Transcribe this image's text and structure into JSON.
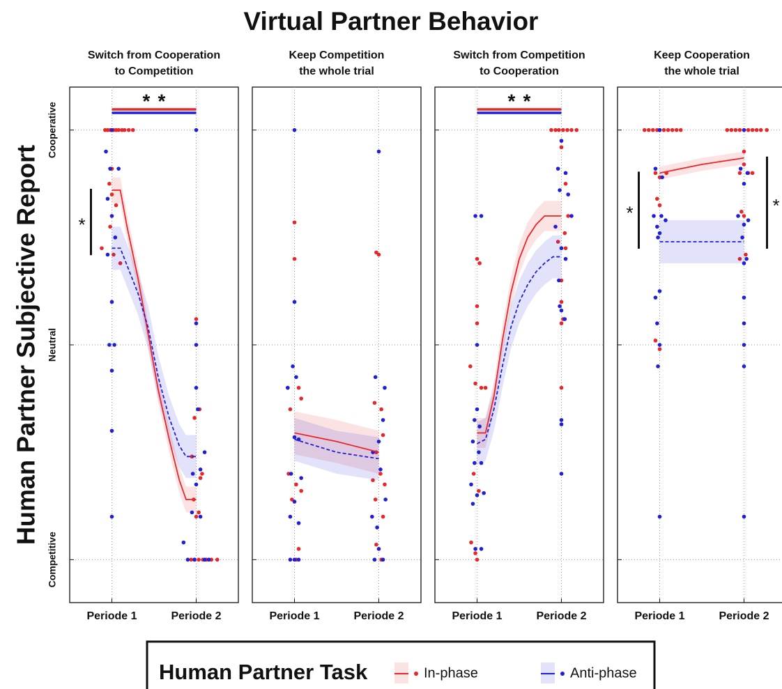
{
  "title": "Virtual Partner Behavior",
  "y_label": "Human Partner Subjective Report",
  "legend_title": "Human Partner Task",
  "chart_data": [
    {
      "type": "line",
      "title_lines": [
        "Switch from Cooperation",
        "to Competition"
      ],
      "xlim": [
        0.5,
        2.5
      ],
      "ylim": [
        -1.2,
        1.2
      ],
      "xticks": [
        {
          "value": 1,
          "label": "Periode 1"
        },
        {
          "value": 2,
          "label": "Periode 2"
        }
      ],
      "yticks": [
        {
          "value": -1,
          "label": "Competitive"
        },
        {
          "value": 0,
          "label": "Neutral"
        },
        {
          "value": 1,
          "label": "Cooperative"
        }
      ],
      "grid": true,
      "series": [
        {
          "name": "In-phase",
          "color": "#e8262a",
          "style": "solid",
          "x": [
            1,
            1.1,
            1.18,
            1.31,
            1.43,
            1.55,
            1.68,
            1.8,
            1.88,
            2
          ],
          "values": [
            0.72,
            0.72,
            0.55,
            0.31,
            0.05,
            -0.21,
            -0.44,
            -0.63,
            -0.72,
            -0.72
          ],
          "err": [
            0.06,
            0.06,
            0.06,
            0.06,
            0.06,
            0.06,
            0.06,
            0.06,
            0.06,
            0.06
          ],
          "dots_x": [
            0.92,
            0.95,
            0.98,
            1.02,
            1.05,
            1.08,
            1.12,
            1.15,
            1.2,
            1.25,
            1,
            0.97,
            1,
            1.05,
            0.98,
            0.88,
            1.02,
            1.1,
            2,
            2.04,
            1.98,
            1.95,
            2.05,
            2.07,
            1.97,
            2.03,
            2,
            1.94,
            1.98,
            2.03,
            2.08,
            2.12,
            2.18,
            2.25
          ],
          "dots_y": [
            1,
            1,
            1,
            1,
            1,
            1,
            1,
            1,
            1,
            1,
            0.82,
            0.75,
            0.7,
            0.65,
            0.55,
            0.45,
            0.42,
            0.38,
            0.12,
            -0.3,
            -0.34,
            -0.52,
            -0.62,
            -0.6,
            -0.72,
            -0.78,
            -0.8,
            -1,
            -1,
            -1,
            -1,
            -1,
            -1,
            -1
          ]
        },
        {
          "name": "Anti-phase",
          "color": "#1f1fd6",
          "style": "dashed",
          "x": [
            1,
            1.1,
            1.18,
            1.31,
            1.43,
            1.55,
            1.68,
            1.8,
            1.88,
            2
          ],
          "values": [
            0.45,
            0.45,
            0.37,
            0.24,
            0.08,
            -0.15,
            -0.34,
            -0.47,
            -0.52,
            -0.52
          ],
          "err": [
            0.1,
            0.1,
            0.1,
            0.1,
            0.1,
            0.1,
            0.1,
            0.1,
            0.1,
            0.1
          ],
          "dots_x": [
            1,
            0.93,
            0.98,
            1.08,
            0.95,
            1,
            1.04,
            0.95,
            1,
            0.97,
            1.03,
            1,
            1,
            1,
            2,
            2,
            2,
            2,
            2.02,
            2.1,
            2.05,
            1.96,
            2,
            1.95,
            2.05,
            1.85,
            1.9,
            1.98,
            2.1,
            2.15
          ],
          "dots_y": [
            1,
            0.9,
            0.82,
            0.82,
            0.68,
            0.6,
            0.5,
            0.42,
            0.2,
            0,
            0,
            -0.12,
            -0.4,
            -0.8,
            1,
            0.1,
            0,
            -0.2,
            -0.3,
            -0.5,
            -0.58,
            -0.6,
            -0.65,
            -0.78,
            -0.8,
            -0.92,
            -1,
            -1,
            -1,
            -1
          ]
        }
      ],
      "annotations": [
        {
          "text": "*",
          "kind": "top",
          "color": "#e8262a"
        },
        {
          "text": "*",
          "kind": "top",
          "color": "#1f1fd6"
        },
        {
          "text": "*",
          "kind": "left",
          "color": "#111111"
        }
      ]
    },
    {
      "type": "line",
      "title_lines": [
        "Keep Competition",
        "the whole trial"
      ],
      "xlim": [
        0.5,
        2.5
      ],
      "ylim": [
        -1.2,
        1.2
      ],
      "xticks": [
        {
          "value": 1,
          "label": "Periode 1"
        },
        {
          "value": 2,
          "label": "Periode 2"
        }
      ],
      "yticks": [
        -1,
        0,
        1
      ],
      "grid": true,
      "series": [
        {
          "name": "In-phase",
          "color": "#e8262a",
          "style": "solid",
          "x": [
            1,
            1.5,
            2
          ],
          "values": [
            -0.41,
            -0.45,
            -0.5
          ],
          "err": [
            0.1,
            0.1,
            0.1
          ],
          "dots_x": [
            1,
            1,
            0.92,
            1.05,
            0.95,
            1.08,
            0.93,
            1.02,
            1.08,
            0.97,
            1.05,
            1.02,
            2,
            1.97,
            1.95,
            2.03,
            2.05,
            1.97,
            2.02,
            1.93,
            2.07,
            1.96,
            2.05,
            1.97,
            2.03
          ],
          "dots_y": [
            0.57,
            0.4,
            -0.2,
            -0.2,
            -0.3,
            -0.25,
            -0.6,
            -0.65,
            -0.68,
            -0.72,
            -0.95,
            -1,
            0.42,
            0.43,
            -0.27,
            -0.3,
            -0.42,
            -0.5,
            -0.6,
            -0.63,
            -0.65,
            -0.72,
            -0.8,
            -0.93,
            -1
          ]
        },
        {
          "name": "Anti-phase",
          "color": "#1f1fd6",
          "style": "dashed",
          "x": [
            1,
            1.5,
            2
          ],
          "values": [
            -0.44,
            -0.5,
            -0.53
          ],
          "err": [
            0.1,
            0.1,
            0.1
          ],
          "dots_x": [
            1,
            1,
            0.98,
            1.02,
            0.92,
            1,
            1.05,
            0.96,
            1.08,
            1,
            0.95,
            1.05,
            0.95,
            1,
            1.05,
            2,
            1.96,
            2.07,
            2.05,
            2,
            1.93,
            2.02,
            2.08,
            1.92,
            1.98,
            2,
            1.95,
            2.05
          ],
          "dots_y": [
            1,
            0.2,
            -0.1,
            -0.15,
            -0.2,
            -0.43,
            -0.44,
            -0.6,
            -0.62,
            -0.73,
            -0.8,
            -0.83,
            -1,
            -1,
            -1,
            0.9,
            -0.15,
            -0.2,
            -0.35,
            -0.45,
            -0.5,
            -0.58,
            -0.72,
            -0.8,
            -0.85,
            -0.95,
            -1,
            -1
          ]
        }
      ],
      "annotations": []
    },
    {
      "type": "line",
      "title_lines": [
        "Switch from Competition",
        "to Cooperation"
      ],
      "xlim": [
        0.5,
        2.5
      ],
      "ylim": [
        -1.2,
        1.2
      ],
      "xticks": [
        {
          "value": 1,
          "label": "Periode 1"
        },
        {
          "value": 2,
          "label": "Periode 2"
        }
      ],
      "yticks": [
        -1,
        0,
        1
      ],
      "grid": true,
      "series": [
        {
          "name": "In-phase",
          "color": "#e8262a",
          "style": "solid",
          "x": [
            1,
            1.1,
            1.2,
            1.3,
            1.4,
            1.5,
            1.6,
            1.7,
            1.8,
            1.9,
            2
          ],
          "values": [
            -0.41,
            -0.41,
            -0.24,
            0.02,
            0.24,
            0.4,
            0.5,
            0.56,
            0.6,
            0.6,
            0.6
          ],
          "err": [
            0.07,
            0.07,
            0.07,
            0.07,
            0.07,
            0.07,
            0.07,
            0.07,
            0.07,
            0.07,
            0.07
          ],
          "dots_x": [
            1,
            1.03,
            1,
            1,
            0.92,
            0.98,
            1.05,
            1.1,
            0.96,
            1.02,
            0.93,
            0.98,
            1,
            1.88,
            1.93,
            1.97,
            2.02,
            2.07,
            2.12,
            2.18,
            2,
            2.05,
            2.08,
            2.04,
            1.96,
            2.05,
            2,
            2,
            2,
            2.02,
            2
          ],
          "dots_y": [
            0.4,
            0.38,
            0.18,
            0.1,
            -0.1,
            -0.18,
            -0.2,
            -0.2,
            -0.6,
            -0.68,
            -0.92,
            -0.97,
            -1,
            1,
            1,
            1,
            1,
            1,
            1,
            1,
            0.92,
            0.75,
            0.6,
            0.52,
            0.48,
            0.45,
            0.3,
            0.2,
            0.1,
            0.12,
            -0.2
          ]
        },
        {
          "name": "Anti-phase",
          "color": "#1f1fd6",
          "style": "dashed",
          "x": [
            1,
            1.1,
            1.2,
            1.3,
            1.4,
            1.5,
            1.6,
            1.7,
            1.8,
            1.9,
            2
          ],
          "values": [
            -0.46,
            -0.44,
            -0.3,
            -0.1,
            0.08,
            0.2,
            0.28,
            0.34,
            0.38,
            0.41,
            0.41
          ],
          "err": [
            0.1,
            0.1,
            0.1,
            0.1,
            0.1,
            0.1,
            0.1,
            0.1,
            0.1,
            0.1,
            0.1
          ],
          "dots_x": [
            0.98,
            1.05,
            1,
            0.97,
            1.03,
            1,
            0.95,
            1.02,
            0.97,
            1.05,
            0.93,
            1,
            1.08,
            0.95,
            0.98,
            1.05,
            2,
            1.96,
            2.05,
            1.98,
            2.08,
            2.12,
            1.93,
            2,
            2.05,
            1.97,
            2,
            1.98,
            2.04,
            2,
            2,
            2
          ],
          "dots_y": [
            0.6,
            0.6,
            -0.3,
            -0.35,
            -0.38,
            0,
            -0.45,
            -0.5,
            -0.55,
            -0.55,
            -0.65,
            -0.7,
            -0.69,
            -0.74,
            -0.95,
            -0.95,
            0.95,
            0.82,
            0.8,
            0.72,
            0.7,
            0.6,
            0.55,
            0.45,
            0.4,
            0.3,
            0.16,
            0.18,
            0.12,
            -0.35,
            -0.37,
            -0.6
          ]
        }
      ],
      "annotations": [
        {
          "text": "*",
          "kind": "top",
          "color": "#e8262a"
        },
        {
          "text": "*",
          "kind": "top",
          "color": "#1f1fd6"
        }
      ]
    },
    {
      "type": "line",
      "title_lines": [
        "Keep Cooperation",
        "the whole trial"
      ],
      "xlim": [
        0.5,
        2.5
      ],
      "ylim": [
        -1.2,
        1.2
      ],
      "xticks": [
        {
          "value": 1,
          "label": "Periode 1"
        },
        {
          "value": 2,
          "label": "Periode 2"
        }
      ],
      "yticks": [
        -1,
        0,
        1
      ],
      "grid": true,
      "series": [
        {
          "name": "In-phase",
          "color": "#e8262a",
          "style": "solid",
          "x": [
            1,
            1.5,
            2
          ],
          "values": [
            0.8,
            0.84,
            0.87
          ],
          "err": [
            0.03,
            0.03,
            0.03
          ],
          "dots_x": [
            0.82,
            0.87,
            0.92,
            0.97,
            1,
            1.05,
            1.1,
            1.15,
            1.2,
            1.25,
            0.95,
            1,
            1.08,
            0.97,
            1,
            0.95,
            1,
            1.8,
            1.85,
            1.9,
            1.95,
            2,
            2.05,
            2.1,
            2.15,
            2.2,
            2.27,
            2,
            2,
            1.95,
            2.05,
            2.1,
            1.97,
            2,
            2.02,
            1.95
          ],
          "dots_y": [
            1,
            1,
            1,
            1,
            1,
            1,
            1,
            1,
            1,
            1,
            0.8,
            0.78,
            0.8,
            0.68,
            0.65,
            0.02,
            -0.02,
            1,
            1,
            1,
            1,
            1,
            1,
            1,
            1,
            1,
            1,
            0.9,
            0.84,
            0.8,
            0.8,
            0.8,
            0.62,
            0.6,
            0.42,
            0.4
          ]
        },
        {
          "name": "Anti-phase",
          "color": "#1f1fd6",
          "style": "dashed",
          "x": [
            1,
            1.5,
            2
          ],
          "values": [
            0.48,
            0.48,
            0.48
          ],
          "err": [
            0.1,
            0.1,
            0.1
          ],
          "dots_x": [
            1,
            0.95,
            1.03,
            0.93,
            1.02,
            1.07,
            0.97,
            1,
            0.98,
            1,
            0.95,
            0.97,
            1,
            0.98,
            1,
            2,
            1.96,
            2.04,
            2,
            1.93,
            2.05,
            2,
            1.98,
            2.03,
            2,
            2,
            2,
            2,
            2,
            2
          ],
          "dots_y": [
            1,
            0.82,
            0.78,
            0.6,
            0.6,
            0.58,
            0.55,
            0.52,
            0.5,
            0.25,
            0.22,
            0.1,
            0,
            -0.1,
            -0.8,
            1,
            0.82,
            0.8,
            0.75,
            0.6,
            0.58,
            0.56,
            0.5,
            0.4,
            0.38,
            0.22,
            0.1,
            0,
            -0.1,
            -0.8
          ]
        }
      ],
      "annotations": [
        {
          "text": "*",
          "kind": "left",
          "color": "#111111"
        },
        {
          "text": "*",
          "kind": "right",
          "color": "#111111"
        }
      ]
    }
  ]
}
